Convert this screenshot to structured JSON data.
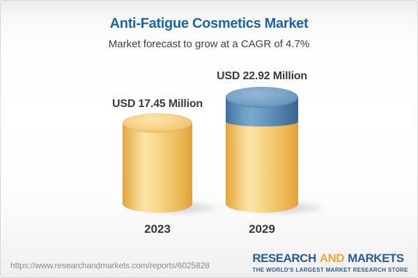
{
  "header": {
    "title": "Anti-Fatigue Cosmetics Market",
    "subtitle": "Market forecast to grow at a CAGR of 4.7%"
  },
  "chart_data": {
    "type": "bar",
    "variant": "3d-cylinder",
    "title": "Anti-Fatigue Cosmetics Market",
    "subtitle": "Market forecast to grow at a CAGR of 4.7%",
    "unit": "USD Million",
    "cagr_percent": 4.7,
    "categories": [
      "2023",
      "2029"
    ],
    "values": [
      17.45,
      22.92
    ],
    "value_labels": [
      "USD 17.45 Million",
      "USD 22.92 Million"
    ],
    "series": [
      {
        "name": "base-market",
        "values": [
          17.45,
          17.45
        ],
        "color": "#f2c567"
      },
      {
        "name": "forecast-growth",
        "values": [
          0,
          5.47
        ],
        "color": "#4f7fa9"
      }
    ],
    "legend_position": "none",
    "grid": false,
    "xlabel": "",
    "ylabel": "",
    "colors": {
      "bar_yellow": "#f2c567",
      "bar_blue": "#4f7fa9",
      "title_blue": "#1d64a8",
      "label_text": "#3b3b3b"
    }
  },
  "footer": {
    "url": "https://www.researchandmarkets.com/reports/6025828",
    "logo": {
      "research": "RESEARCH",
      "and": "AND",
      "markets": "MARKETS",
      "tagline": "THE WORLD'S LARGEST MARKET RESEARCH STORE",
      "blue": "#2b5a9b",
      "orange": "#f0a63c"
    }
  }
}
